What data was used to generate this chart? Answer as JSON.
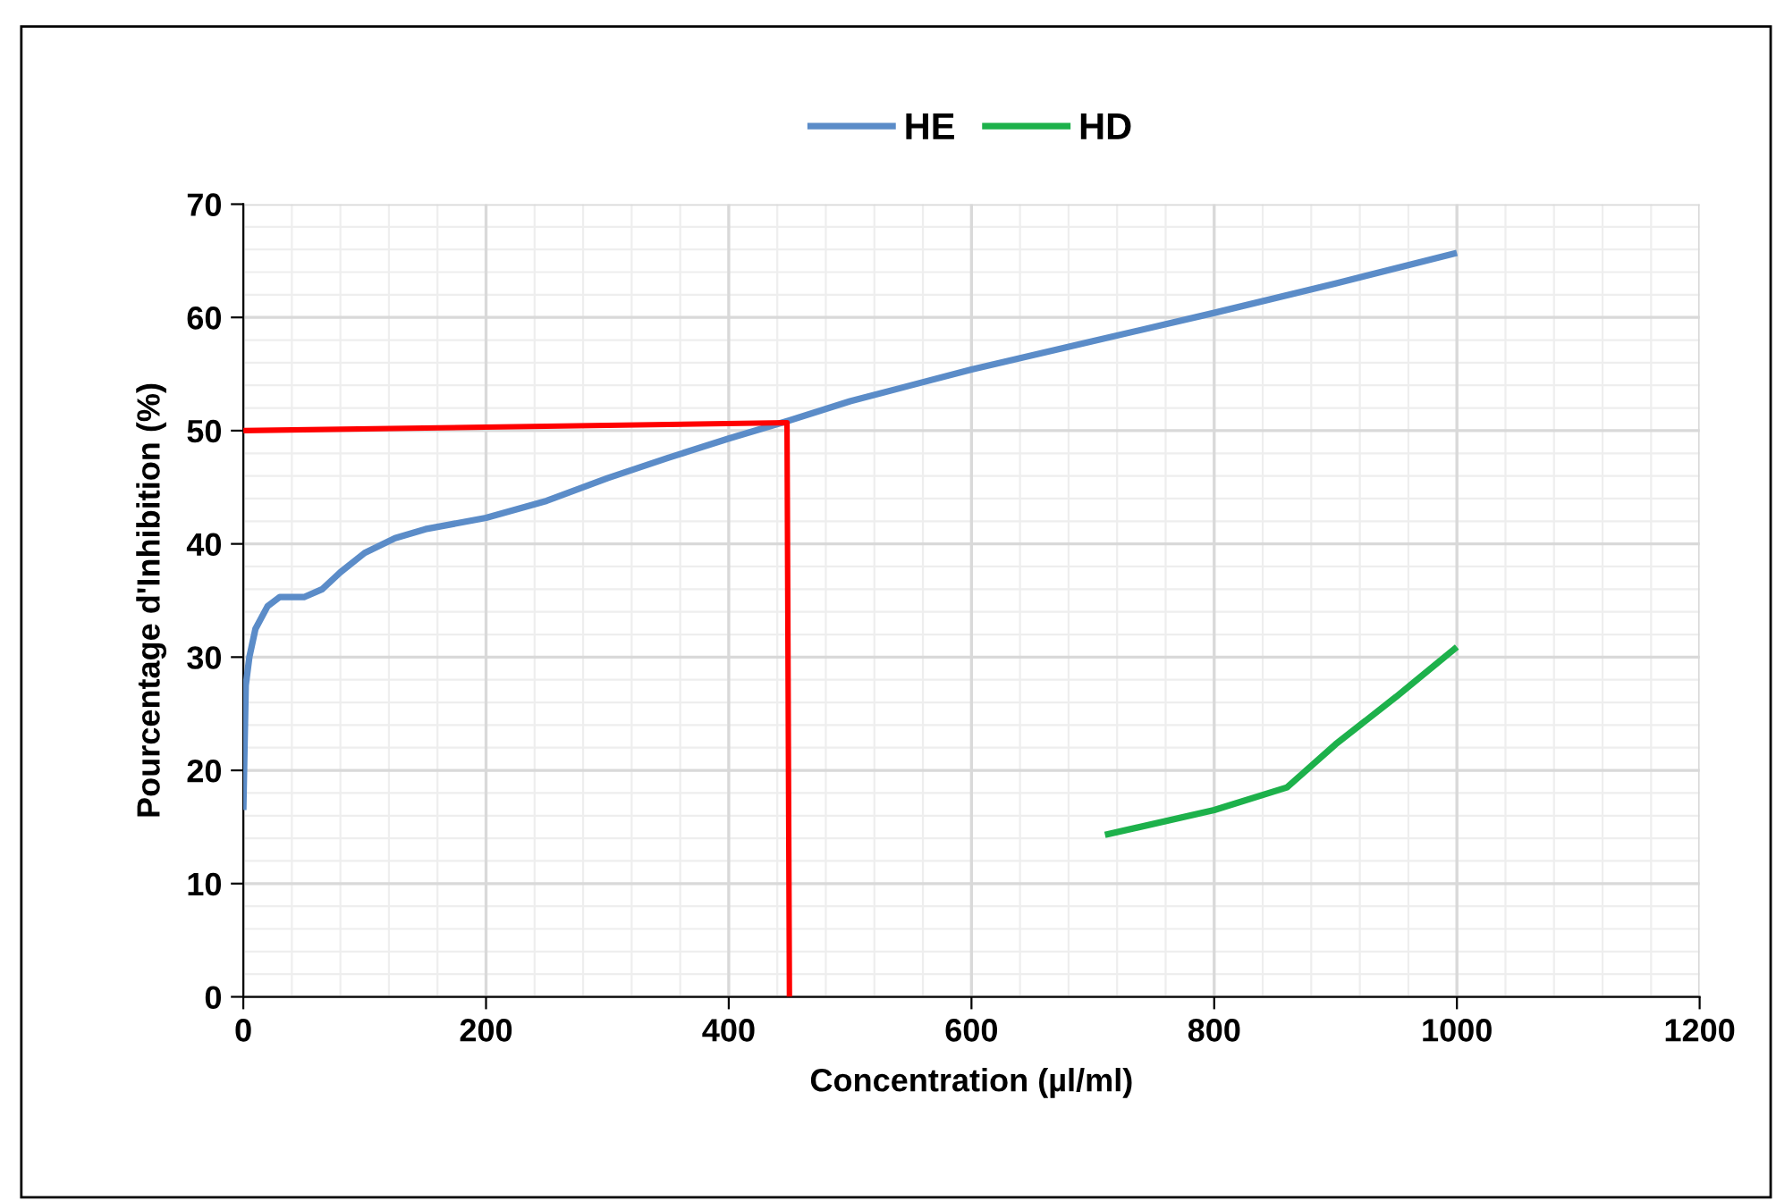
{
  "chart_data": {
    "type": "line",
    "xlabel": "Concentration (µl/ml)",
    "ylabel": "Pourcentage d'Inhibition (%)",
    "xlim": [
      0,
      1200
    ],
    "xticks": [
      0,
      200,
      400,
      600,
      800,
      1000,
      1200
    ],
    "ylim": [
      0,
      70
    ],
    "yticks": [
      0,
      10,
      20,
      30,
      40,
      50,
      60,
      70
    ],
    "grid": true,
    "legend": "top",
    "marker": "none",
    "line_style": "solid",
    "series": [
      {
        "name": "HE",
        "color": "#5b8cc8",
        "x": [
          0,
          2,
          5,
          10,
          20,
          30,
          50,
          65,
          80,
          100,
          125,
          150,
          200,
          250,
          300,
          350,
          400,
          450,
          500,
          600,
          700,
          800,
          900,
          1000
        ],
        "values": [
          16.5,
          27.5,
          30,
          32.5,
          34.5,
          35.3,
          35.3,
          36,
          37.5,
          39.2,
          40.5,
          41.3,
          42.3,
          43.8,
          45.8,
          47.6,
          49.3,
          50.9,
          52.6,
          55.4,
          57.9,
          60.4,
          63,
          65.7
        ]
      },
      {
        "name": "HD",
        "color": "#1db14b",
        "x": [
          710,
          800,
          860,
          900,
          950,
          1000
        ],
        "values": [
          14.3,
          16.5,
          18.5,
          22.3,
          26.5,
          30.9
        ]
      },
      {
        "color": "#ff0000",
        "x": [
          0,
          448,
          450
        ],
        "values": [
          50,
          50.7,
          0
        ]
      }
    ]
  }
}
